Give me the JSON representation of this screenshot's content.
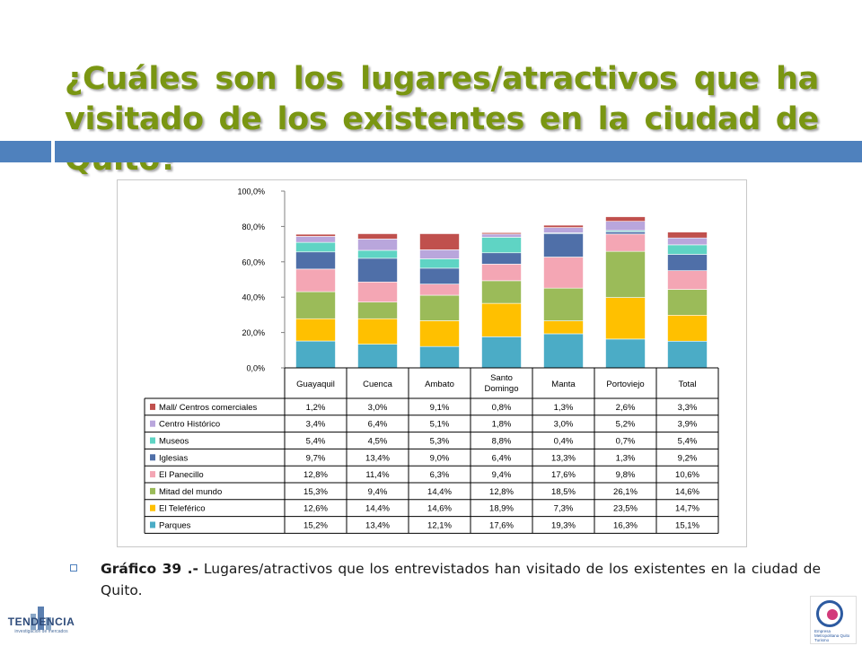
{
  "slide": {
    "title": "¿Cuáles son los lugares/atractivos que ha visitado de los existentes en la ciudad de Quito?",
    "caption_label": "Gráfico 39 .-",
    "caption_text": " Lugares/atractivos que los entrevistados han visitado de los existentes en la ciudad de Quito.",
    "logo_left_name": "TENDENCIA",
    "logo_left_sub": "investigación de mercados",
    "logo_right_text": "Empresa Metropolitana Quito Turismo"
  },
  "chart_data": {
    "type": "bar",
    "stacked": true,
    "percent_stacked": true,
    "categories": [
      "Guayaquil",
      "Cuenca",
      "Ambato",
      "Santo Domingo",
      "Manta",
      "Portoviejo",
      "Total"
    ],
    "y_ticks": [
      "0,0%",
      "20,0%",
      "40,0%",
      "60,0%",
      "80,0%",
      "100,0%"
    ],
    "ylim": [
      0,
      100
    ],
    "grid": false,
    "legend_placement": "data-table",
    "series": [
      {
        "name": "Parques",
        "color": "#4bacc6",
        "values": [
          15.2,
          13.4,
          12.1,
          17.6,
          19.3,
          16.3,
          15.1
        ],
        "labels": [
          "15,2%",
          "13,4%",
          "12,1%",
          "17,6%",
          "19,3%",
          "16,3%",
          "15,1%"
        ]
      },
      {
        "name": "El Teleférico",
        "color": "#ffc000",
        "values": [
          12.6,
          14.4,
          14.6,
          18.9,
          7.3,
          23.5,
          14.7
        ],
        "labels": [
          "12,6%",
          "14,4%",
          "14,6%",
          "18,9%",
          "7,3%",
          "23,5%",
          "14,7%"
        ]
      },
      {
        "name": "Mitad del mundo",
        "color": "#9bbb59",
        "values": [
          15.3,
          9.4,
          14.4,
          12.8,
          18.5,
          26.1,
          14.6
        ],
        "labels": [
          "15,3%",
          "9,4%",
          "14,4%",
          "12,8%",
          "18,5%",
          "26,1%",
          "14,6%"
        ]
      },
      {
        "name": "El Panecillo",
        "color": "#f4a6b4",
        "values": [
          12.8,
          11.4,
          6.3,
          9.4,
          17.6,
          9.8,
          10.6
        ],
        "labels": [
          "12,8%",
          "11,4%",
          "6,3%",
          "9,4%",
          "17,6%",
          "9,8%",
          "10,6%"
        ]
      },
      {
        "name": "Iglesias",
        "color": "#4f6fa8",
        "values": [
          9.7,
          13.4,
          9.0,
          6.4,
          13.3,
          1.3,
          9.2
        ],
        "labels": [
          "9,7%",
          "13,4%",
          "9,0%",
          "6,4%",
          "13,3%",
          "1,3%",
          "9,2%"
        ]
      },
      {
        "name": "Museos",
        "color": "#5fd4c4",
        "values": [
          5.4,
          4.5,
          5.3,
          8.8,
          0.4,
          0.7,
          5.4
        ],
        "labels": [
          "5,4%",
          "4,5%",
          "5,3%",
          "8,8%",
          "0,4%",
          "0,7%",
          "5,4%"
        ]
      },
      {
        "name": "Centro Histórico",
        "color": "#b9a6dc",
        "values": [
          3.4,
          6.4,
          5.1,
          1.8,
          3.0,
          5.2,
          3.9
        ],
        "labels": [
          "3,4%",
          "6,4%",
          "5,1%",
          "1,8%",
          "3,0%",
          "5,2%",
          "3,9%"
        ]
      },
      {
        "name": "Mall/ Centros comerciales",
        "color": "#c0504d",
        "values": [
          1.2,
          3.0,
          9.1,
          0.8,
          1.3,
          2.6,
          3.3
        ],
        "labels": [
          "1,2%",
          "3,0%",
          "9,1%",
          "0,8%",
          "1,3%",
          "2,6%",
          "3,3%"
        ]
      }
    ]
  }
}
